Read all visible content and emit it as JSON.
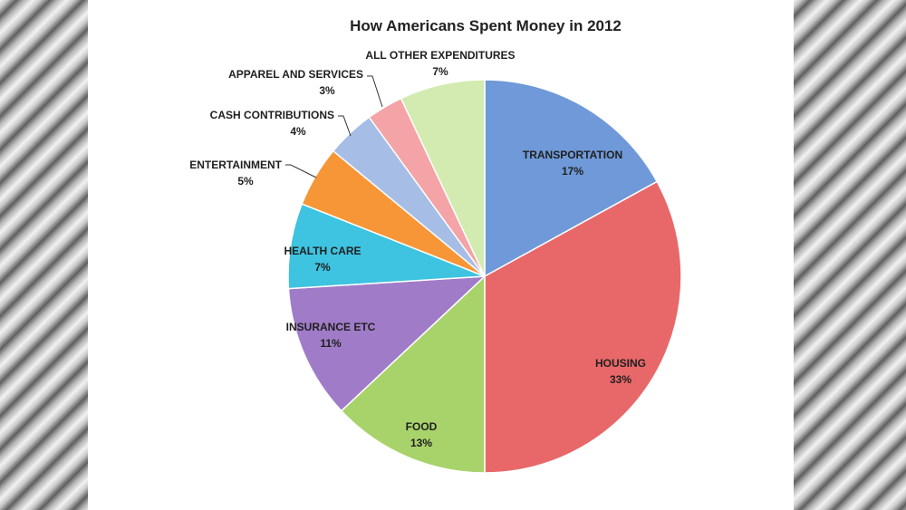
{
  "chart_data": {
    "type": "pie",
    "title": "How Americans Spent Money in 2012",
    "slices": [
      {
        "label": "Transportation",
        "value": 17,
        "value_label": "17%",
        "color": "#6f99d8"
      },
      {
        "label": "Housing",
        "value": 33,
        "value_label": "33%",
        "color": "#e8686a"
      },
      {
        "label": "Food",
        "value": 13,
        "value_label": "13%",
        "color": "#a8d36b"
      },
      {
        "label": "Insurance etc",
        "value": 11,
        "value_label": "11%",
        "color": "#a07cc8"
      },
      {
        "label": "Health care",
        "value": 7,
        "value_label": "7%",
        "color": "#3ec3e0"
      },
      {
        "label": "Entertainment",
        "value": 5,
        "value_label": "5%",
        "color": "#f79637"
      },
      {
        "label": "Cash contributions",
        "value": 4,
        "value_label": "4%",
        "color": "#a6bde6"
      },
      {
        "label": "Apparel and services",
        "value": 3,
        "value_label": "3%",
        "color": "#f4a3a6"
      },
      {
        "label": "All other expenditures",
        "value": 7,
        "value_label": "7%",
        "color": "#d3ebb0"
      }
    ]
  }
}
